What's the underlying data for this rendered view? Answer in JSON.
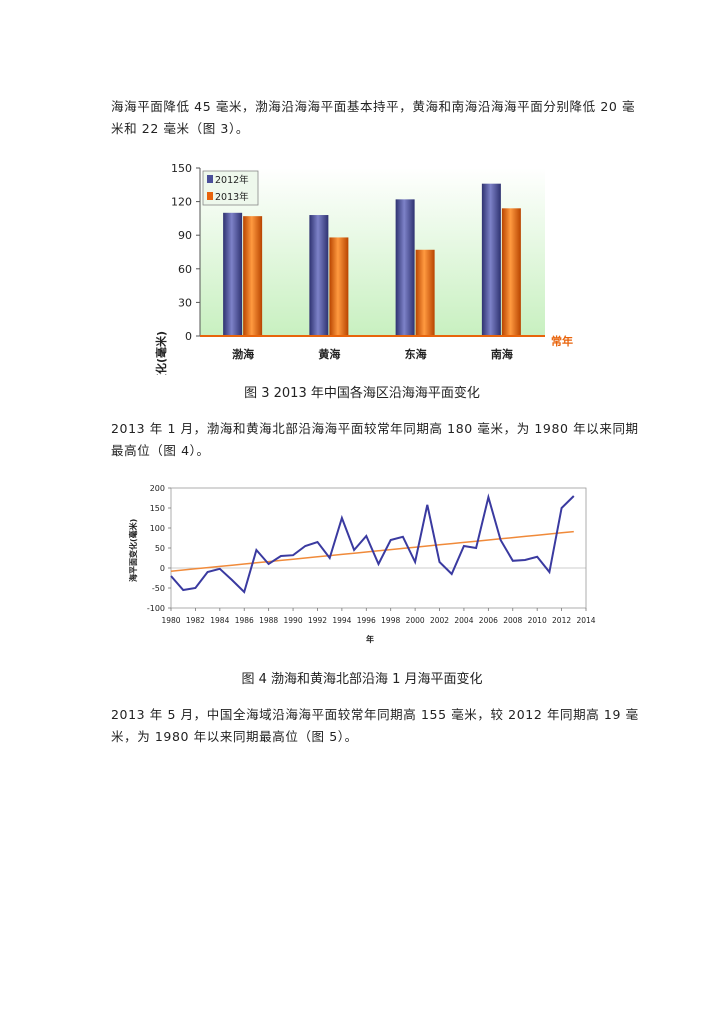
{
  "paragraphs": {
    "p1": {
      "line1": "海海平面降低 45 毫米，渤海沿海海平面基本持平，黄海和南海沿海海平面分别降低 20 毫",
      "line2": "米和 22 毫米（图 3）。"
    },
    "p2": {
      "line1": "2013 年 1 月，渤海和黄海北部沿海海平面较常年同期高 180 毫米，为 1980 年以来同期",
      "line2": "最高位（图 4）。"
    },
    "p3": {
      "line1": "2013 年 5 月，中国全海域沿海海平面较常年同期高 155 毫米，较 2012 年同期高 19 毫",
      "line2": "米，为 1980 年以来同期最高位（图 5）。"
    }
  },
  "captions": {
    "fig3": "图 3 2013 年中国各海区沿海海平面变化",
    "fig4": "图 4 渤海和黄海北部沿海 1 月海平面变化"
  },
  "colors": {
    "series_2012": "#4a4f9a",
    "series_2013": "#e8640c",
    "plot_bg_top": "#ffffff",
    "plot_bg_bottom": "#c8f0c0",
    "line_series": "#3a3aa0",
    "trend_line": "#f08a3a",
    "baseline": "#e8640c"
  },
  "chart_data": [
    {
      "type": "bar",
      "title": "",
      "xlabel": "",
      "ylabel": "海平面变化(毫米)",
      "categories": [
        "渤海",
        "黄海",
        "东海",
        "南海"
      ],
      "series": [
        {
          "name": "2012年",
          "values": [
            110,
            108,
            122,
            136
          ]
        },
        {
          "name": "2013年",
          "values": [
            107,
            88,
            77,
            114
          ]
        }
      ],
      "ylim": [
        0,
        150
      ],
      "yticks": [
        0,
        30,
        60,
        90,
        120,
        150
      ],
      "baseline_label": "常年",
      "legend": "top-left",
      "grid": false
    },
    {
      "type": "line",
      "title": "",
      "xlabel": "年",
      "ylabel": "海平面变化(毫米)",
      "x": [
        1980,
        1981,
        1982,
        1983,
        1984,
        1985,
        1986,
        1987,
        1988,
        1989,
        1990,
        1991,
        1992,
        1993,
        1994,
        1995,
        1996,
        1997,
        1998,
        1999,
        2000,
        2001,
        2002,
        2003,
        2004,
        2005,
        2006,
        2007,
        2008,
        2009,
        2010,
        2011,
        2012,
        2013
      ],
      "series": [
        {
          "values": [
            -20,
            -55,
            -50,
            -10,
            -2,
            -30,
            -60,
            45,
            10,
            30,
            32,
            55,
            65,
            25,
            125,
            45,
            80,
            10,
            70,
            78,
            15,
            158,
            15,
            -15,
            55,
            50,
            177,
            70,
            18,
            20,
            28,
            -10,
            150,
            180
          ]
        },
        {
          "values": [
            -8,
            -5,
            -2,
            1,
            4,
            7,
            10,
            13,
            16,
            19,
            22,
            25,
            28,
            31,
            34,
            37,
            40,
            43,
            46,
            49,
            52,
            55,
            58,
            61,
            64,
            67,
            70,
            73,
            76,
            79,
            82,
            85,
            88,
            91
          ]
        }
      ],
      "xlim": [
        1980,
        2014
      ],
      "xticks": [
        1980,
        1982,
        1984,
        1986,
        1988,
        1990,
        1992,
        1994,
        1996,
        1998,
        2000,
        2002,
        2004,
        2006,
        2008,
        2010,
        2012,
        2014
      ],
      "ylim": [
        -100,
        200
      ],
      "yticks": [
        -100,
        -50,
        0,
        50,
        100,
        150,
        200
      ],
      "grid": false
    }
  ]
}
